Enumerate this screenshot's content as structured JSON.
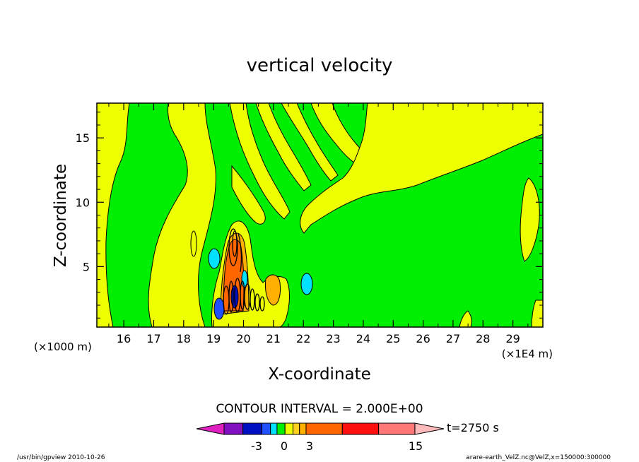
{
  "chart_data": {
    "type": "heatmap",
    "title": "vertical velocity",
    "xlabel": "X-coordinate",
    "ylabel": "Z-coordinate",
    "x_units_left": "(×1000 m)",
    "x_units_right": "(×1E4 m)",
    "x_ticks": [
      "16",
      "17",
      "18",
      "19",
      "20",
      "21",
      "22",
      "23",
      "24",
      "25",
      "26",
      "27",
      "28",
      "29"
    ],
    "y_ticks": [
      "5",
      "10",
      "15"
    ],
    "xlim": [
      15.1,
      30.0
    ],
    "ylim": [
      0.3,
      17.7
    ],
    "contour_interval_text": "CONTOUR INTERVAL = 2.000E+00",
    "time_label": "t=2750 s",
    "colorbar_labels": [
      "-3",
      "0",
      "3",
      "15"
    ],
    "colorbar_colors": [
      "#e020c0",
      "#8010c0",
      "#0010c0",
      "#2050ff",
      "#00e0ff",
      "#00ee00",
      "#eeff00",
      "#ffd020",
      "#ffb000",
      "#ff6600",
      "#ff1010",
      "#ff7878",
      "#ffbbbb"
    ],
    "footer_left": "/usr/bin/gpview   2010-10-26",
    "footer_right": "arare-earth_VelZ.nc@VelZ,x=150000:300000"
  },
  "colors": {
    "green": "#00ee00",
    "yellow": "#eeff00",
    "orange": "#ff6600",
    "cyan": "#00e0ff",
    "blue": "#2050ff",
    "dark": "#000000"
  }
}
